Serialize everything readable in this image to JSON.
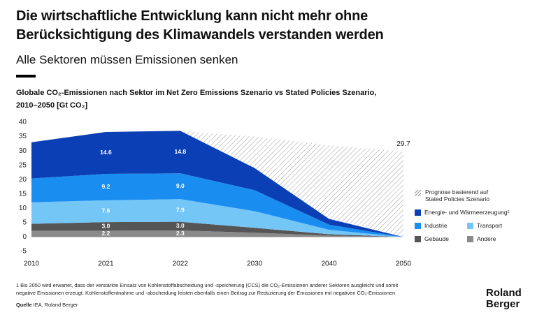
{
  "header": {
    "title": [
      "Die wirtschaftliche Entwicklung kann nicht mehr ohne",
      "Berücksichtigung des Klimawandels verstanden werden"
    ],
    "subtitle": "Alle Sektoren müssen Emissionen senken"
  },
  "chart_data": {
    "type": "stacked_area",
    "title": [
      "Globale CO₂-Emissionen nach Sektor im Net Zero Emissions Szenario vs Stated Policies Szenario,",
      "2010–2050 [Gt CO₂]"
    ],
    "categories": [
      "2010",
      "2021",
      "2022",
      "2030",
      "2040",
      "2050"
    ],
    "ylim": [
      -5,
      40
    ],
    "yticks": [
      -5,
      0,
      5,
      10,
      15,
      20,
      25,
      30,
      35,
      40
    ],
    "series": [
      {
        "name": "Andere",
        "color": "#8a8a8a",
        "values": [
          2.2,
          2.2,
          2.3,
          1.5,
          0.5,
          0
        ],
        "value_labels": [
          null,
          "2.2",
          "2.3",
          null,
          null,
          null
        ]
      },
      {
        "name": "Gebaude",
        "color": "#555555",
        "values": [
          2.4,
          3.0,
          3.0,
          1.7,
          0.5,
          0
        ],
        "value_labels": [
          null,
          "3.0",
          "3.0",
          null,
          null,
          null
        ]
      },
      {
        "name": "Transport",
        "color": "#74c6f7",
        "values": [
          7.5,
          7.6,
          7.9,
          5.8,
          1.5,
          0
        ],
        "value_labels": [
          null,
          "7.6",
          "7.9",
          null,
          null,
          null
        ]
      },
      {
        "name": "Industrie",
        "color": "#1a8ef0",
        "values": [
          8.3,
          9.2,
          9.0,
          7.3,
          1.8,
          0
        ],
        "value_labels": [
          null,
          "9.2",
          "9.0",
          null,
          null,
          null
        ]
      },
      {
        "name": "Energie- und Wärmeerzeugung¹",
        "color": "#0b3fb5",
        "values": [
          12.6,
          14.6,
          14.8,
          7.7,
          2.0,
          0
        ],
        "value_labels": [
          null,
          "14.6",
          "14.8",
          null,
          null,
          null
        ]
      }
    ],
    "scenario": {
      "name": "Prognose basierend auf Stated Policies Szenario",
      "color": "#999999",
      "values": [
        null,
        null,
        37,
        35,
        32,
        29.7
      ],
      "value_labels": [
        null,
        null,
        null,
        null,
        null,
        "29.7"
      ]
    }
  },
  "footnote": [
    "1 Bis 2050 wird erwartet, dass der verstärkte Einsatz von Kohlenstoffabscheidung und -speicherung (CCS) die CO₂-Emissionen anderer Sektoren ausgleicht und somit",
    "negative Emissionen erzeugt. Kohlenstoffentnahme und -abscheidung leisten ebenfalls einen Beitrag zur Reduzierung der Emissionen mit negativen CO₂-Emissionen"
  ],
  "source": {
    "label": "Quelle",
    "text": "IEA, Roland Berger"
  },
  "logo": [
    "Roland",
    "Berger"
  ]
}
